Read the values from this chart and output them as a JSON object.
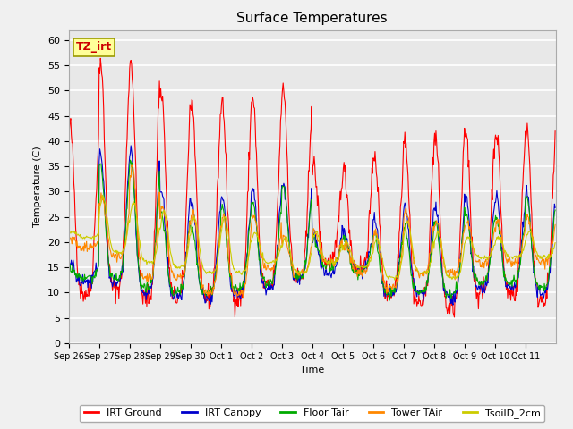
{
  "title": "Surface Temperatures",
  "ylabel": "Temperature (C)",
  "xlabel": "Time",
  "ylim": [
    0,
    62
  ],
  "yticks": [
    0,
    5,
    10,
    15,
    20,
    25,
    30,
    35,
    40,
    45,
    50,
    55,
    60
  ],
  "xtick_labels": [
    "Sep 26",
    "Sep 27",
    "Sep 28",
    "Sep 29",
    "Sep 30",
    "Oct 1",
    "Oct 2",
    "Oct 3",
    "Oct 4",
    "Oct 5",
    "Oct 6",
    "Oct 7",
    "Oct 8",
    "Oct 9",
    "Oct 10",
    "Oct 11"
  ],
  "colors": {
    "IRT Ground": "#ff0000",
    "IRT Canopy": "#0000cc",
    "Floor Tair": "#00aa00",
    "Tower TAir": "#ff8800",
    "TsoilD_2cm": "#cccc00"
  },
  "annotation_text": "TZ_irt",
  "annotation_bg": "#ffff99",
  "annotation_border": "#999900",
  "plot_bg": "#e8e8e8",
  "fig_bg": "#f0f0f0",
  "grid_color": "#ffffff",
  "title_fontsize": 11,
  "n_days": 16,
  "irt_ground_peaks": [
    43,
    56,
    56,
    50,
    48,
    48,
    49,
    51,
    35,
    34,
    38,
    41,
    41,
    42,
    42,
    43
  ],
  "irt_ground_mins": [
    10,
    11,
    9,
    9,
    9,
    9,
    11,
    13,
    16,
    15,
    10,
    8,
    7,
    10,
    10,
    9
  ],
  "irt_canopy_peaks": [
    16,
    38,
    38,
    30,
    28,
    29,
    31,
    32,
    22,
    22,
    25,
    27,
    27,
    29,
    29,
    30
  ],
  "irt_canopy_mins": [
    12,
    12,
    10,
    9,
    9,
    10,
    11,
    13,
    14,
    14,
    10,
    10,
    9,
    11,
    11,
    10
  ],
  "floor_tair_peaks": [
    15,
    35,
    36,
    26,
    23,
    27,
    28,
    31,
    21,
    21,
    22,
    23,
    24,
    26,
    25,
    29
  ],
  "floor_tair_mins": [
    13,
    13,
    11,
    10,
    10,
    11,
    12,
    13,
    15,
    14,
    10,
    10,
    10,
    12,
    12,
    11
  ],
  "tower_tair_peaks": [
    21,
    29,
    35,
    27,
    26,
    25,
    25,
    21,
    22,
    20,
    22,
    26,
    24,
    24,
    24,
    25
  ],
  "tower_tair_mins": [
    19,
    17,
    13,
    13,
    10,
    10,
    15,
    14,
    16,
    14,
    11,
    14,
    14,
    16,
    16,
    16
  ],
  "tsoild_peaks": [
    22,
    29,
    28,
    26,
    25,
    25,
    22,
    21,
    22,
    20,
    21,
    24,
    22,
    21,
    21,
    22
  ],
  "tsoild_mins": [
    21,
    18,
    16,
    15,
    14,
    14,
    16,
    14,
    16,
    15,
    13,
    14,
    13,
    17,
    17,
    17
  ]
}
